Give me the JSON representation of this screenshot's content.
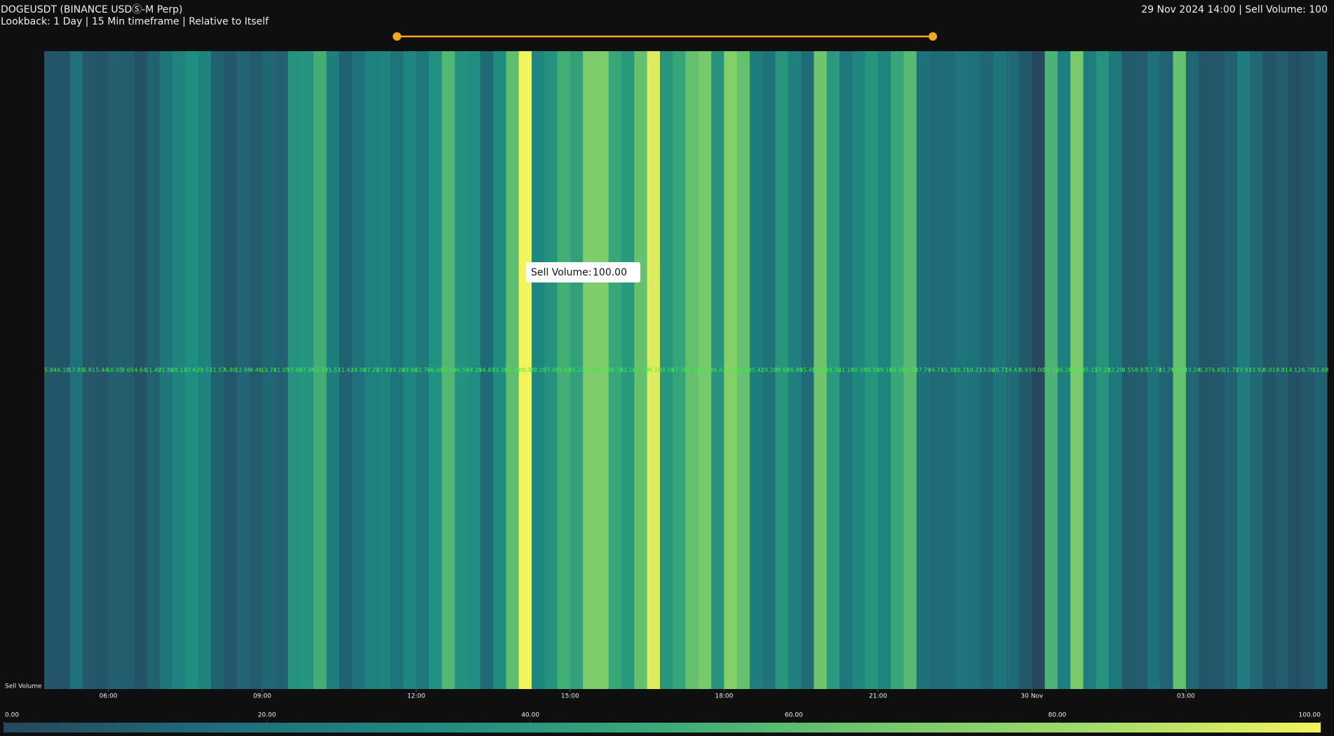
{
  "header": {
    "title": "DOGEUSDT (BINANCE USDⓈ-M Perp)",
    "subtitle": "Lookback: 1 Day | 15 Min timeframe | Relative to Itself",
    "status": "29 Nov 2024 14:00 | Sell Volume: 100"
  },
  "chart_data": {
    "type": "heatmap",
    "ylabel": "Sell Volume",
    "values": [
      5.84,
      6.18,
      17.85,
      6.81,
      5.44,
      10.05,
      9.65,
      4.64,
      11.49,
      21.86,
      28.12,
      33.62,
      28.57,
      11.57,
      6.8,
      12.96,
      8.46,
      13.74,
      11.05,
      37.48,
      37.8,
      52.31,
      25.57,
      11.42,
      18.06,
      27.24,
      27.83,
      19.26,
      29.86,
      22.76,
      36.08,
      57.2,
      36.5,
      34.2,
      14.83,
      33.39,
      60.4,
      100,
      29.2,
      37.4,
      52.6,
      45.1,
      70.3,
      70.3,
      48.2,
      40.1,
      62.4,
      95.1,
      38.59,
      47.3,
      62.1,
      67.2,
      38.43,
      72.4,
      62.3,
      25.42,
      19.2,
      38.6,
      26.89,
      15.45,
      65.2,
      40.3,
      21.18,
      30.35,
      38.5,
      29.18,
      48.4,
      58.3,
      17.79,
      14.73,
      15.35,
      20.71,
      18.27,
      13.08,
      20.77,
      14.43,
      6.93,
      0,
      55.2,
      26.18,
      68.4,
      25.15,
      37.24,
      22.29,
      8.55,
      8.97,
      17.78,
      11.78,
      62.3,
      13.24,
      6.37,
      6.65,
      11.75,
      23.97,
      13.92,
      6.01,
      8.81,
      4.12,
      6.7,
      11.68
    ],
    "value_labels": [
      "5.84",
      "6.18",
      "17.85",
      "6.81",
      "5.44",
      "10.05",
      "9.65",
      "4.64",
      "11.49",
      "21.86",
      "28.12",
      "33.62",
      "28.57",
      "11.57",
      "6.80",
      "12.96",
      "8.46",
      "13.74",
      "11.05",
      "37.48",
      "37.80",
      "52.31",
      "25.57",
      "11.42",
      "18.06",
      "27.24",
      "27.83",
      "19.26",
      "29.86",
      "22.76",
      "36.08",
      "57.20",
      "36.50",
      "34.20",
      "14.83",
      "33.39",
      "60.40",
      "100.00",
      "29.20",
      "37.40",
      "52.60",
      "45.10",
      "70.30",
      "70.30",
      "48.20",
      "40.10",
      "62.40",
      "95.10",
      "38.59",
      "47.30",
      "62.10",
      "67.20",
      "38.43",
      "72.40",
      "62.30",
      "25.42",
      "19.20",
      "38.60",
      "26.89",
      "15.45",
      "65.20",
      "40.30",
      "21.18",
      "30.35",
      "38.50",
      "29.18",
      "48.40",
      "58.30",
      "17.79",
      "14.73",
      "15.35",
      "20.71",
      "18.27",
      "13.08",
      "20.77",
      "14.43",
      "6.93",
      "0.00",
      "55.20",
      "26.18",
      "68.40",
      "25.15",
      "37.24",
      "22.29",
      "8.55",
      "8.97",
      "17.78",
      "11.78",
      "62.30",
      "13.24",
      "6.37",
      "6.65",
      "11.75",
      "23.97",
      "13.92",
      "6.01",
      "8.81",
      "4.12",
      "6.70",
      "11.68"
    ],
    "xlim": [
      0,
      100
    ],
    "xticks": [
      {
        "value": 5,
        "label": "06:00"
      },
      {
        "value": 17,
        "label": "09:00"
      },
      {
        "value": 29,
        "label": "12:00"
      },
      {
        "value": 41,
        "label": "15:00"
      },
      {
        "value": 53,
        "label": "18:00"
      },
      {
        "value": 65,
        "label": "21:00"
      },
      {
        "value": 77,
        "label": "30 Nov"
      },
      {
        "value": 89,
        "label": "03:00"
      }
    ],
    "clim": [
      0,
      100
    ],
    "cticks": [
      {
        "value": 0,
        "label": "0.00"
      },
      {
        "value": 20,
        "label": "20.00"
      },
      {
        "value": 40,
        "label": "40.00"
      },
      {
        "value": 60,
        "label": "60.00"
      },
      {
        "value": 80,
        "label": "80.00"
      },
      {
        "value": 100,
        "label": "100.00"
      }
    ],
    "colorscale": [
      "#26475e",
      "#1f6e7a",
      "#1f8c80",
      "#3aaa78",
      "#74c86c",
      "#a5dc6a",
      "#f3f35c"
    ],
    "tooltip": {
      "label": "Sell Volume:",
      "index": 37
    }
  }
}
